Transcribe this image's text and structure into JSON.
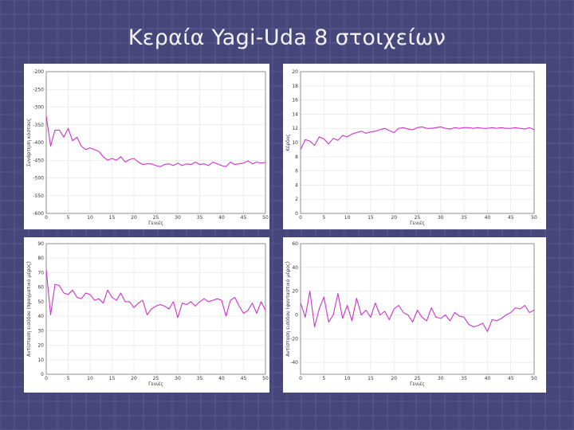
{
  "slide": {
    "title": "Κεραία Yagi-Uda 8 στοιχείων"
  },
  "colors": {
    "background": "#46467a",
    "grid_lines": "#5a5a92",
    "series": "#cc33cc",
    "panel": "#ffffff"
  },
  "chart_data": [
    {
      "type": "line",
      "xlabel": "Γενιές",
      "ylabel": "Συνάρτηση κόστους",
      "xlim": [
        0,
        50
      ],
      "ylim": [
        -600,
        -200
      ],
      "xticks": [
        0,
        5,
        10,
        15,
        20,
        25,
        30,
        35,
        40,
        45,
        50
      ],
      "yticks": [
        -200,
        -250,
        -300,
        -350,
        -400,
        -450,
        -500,
        -550,
        -600
      ],
      "grid": true,
      "x": [
        0,
        1,
        2,
        3,
        4,
        5,
        6,
        7,
        8,
        9,
        10,
        11,
        12,
        13,
        14,
        15,
        16,
        17,
        18,
        19,
        20,
        21,
        22,
        23,
        24,
        25,
        26,
        27,
        28,
        29,
        30,
        31,
        32,
        33,
        34,
        35,
        36,
        37,
        38,
        39,
        40,
        41,
        42,
        43,
        44,
        45,
        46,
        47,
        48,
        49,
        50
      ],
      "series": [
        {
          "values": [
            -325,
            -410,
            -365,
            -365,
            -385,
            -360,
            -395,
            -385,
            -410,
            -420,
            -415,
            -420,
            -425,
            -440,
            -450,
            -445,
            -450,
            -440,
            -455,
            -448,
            -445,
            -455,
            -462,
            -460,
            -460,
            -465,
            -468,
            -462,
            -460,
            -465,
            -458,
            -465,
            -460,
            -462,
            -455,
            -462,
            -460,
            -465,
            -455,
            -460,
            -465,
            -468,
            -455,
            -462,
            -460,
            -458,
            -452,
            -460,
            -455,
            -458,
            -456
          ]
        }
      ]
    },
    {
      "type": "line",
      "xlabel": "Γενιές",
      "ylabel": "Κέρδος",
      "xlim": [
        0,
        50
      ],
      "ylim": [
        0,
        20
      ],
      "xticks": [
        0,
        5,
        10,
        15,
        20,
        25,
        30,
        35,
        40,
        45,
        50
      ],
      "yticks": [
        0,
        2,
        4,
        6,
        8,
        10,
        12,
        14,
        16,
        18,
        20
      ],
      "grid": true,
      "x": [
        0,
        1,
        2,
        3,
        4,
        5,
        6,
        7,
        8,
        9,
        10,
        11,
        12,
        13,
        14,
        15,
        16,
        17,
        18,
        19,
        20,
        21,
        22,
        23,
        24,
        25,
        26,
        27,
        28,
        29,
        30,
        31,
        32,
        33,
        34,
        35,
        36,
        37,
        38,
        39,
        40,
        41,
        42,
        43,
        44,
        45,
        46,
        47,
        48,
        49,
        50
      ],
      "series": [
        {
          "values": [
            9.0,
            10.4,
            10.2,
            9.6,
            10.8,
            10.5,
            9.8,
            10.6,
            10.3,
            11.0,
            10.8,
            11.2,
            11.4,
            11.6,
            11.3,
            11.5,
            11.6,
            11.8,
            12.0,
            11.7,
            11.4,
            12.0,
            12.1,
            11.9,
            11.8,
            12.1,
            12.2,
            12.0,
            12.0,
            12.1,
            12.2,
            12.0,
            11.9,
            12.1,
            12.0,
            12.1,
            12.1,
            12.0,
            12.1,
            12.0,
            12.0,
            12.1,
            12.0,
            12.1,
            12.0,
            12.0,
            12.1,
            12.0,
            11.9,
            12.1,
            11.8
          ]
        }
      ]
    },
    {
      "type": "line",
      "xlabel": "Γενιές",
      "ylabel": "Αντίσταση εισόδου (πραγματικό μέρος)",
      "xlim": [
        0,
        50
      ],
      "ylim": [
        0,
        90
      ],
      "xticks": [
        0,
        5,
        10,
        15,
        20,
        25,
        30,
        35,
        40,
        45,
        50
      ],
      "yticks": [
        0,
        10,
        20,
        30,
        40,
        50,
        60,
        70,
        80,
        90
      ],
      "grid": true,
      "x": [
        0,
        1,
        2,
        3,
        4,
        5,
        6,
        7,
        8,
        9,
        10,
        11,
        12,
        13,
        14,
        15,
        16,
        17,
        18,
        19,
        20,
        21,
        22,
        23,
        24,
        25,
        26,
        27,
        28,
        29,
        30,
        31,
        32,
        33,
        34,
        35,
        36,
        37,
        38,
        39,
        40,
        41,
        42,
        43,
        44,
        45,
        46,
        47,
        48,
        49,
        50
      ],
      "series": [
        {
          "values": [
            72,
            41,
            62,
            61,
            56,
            55,
            58,
            53,
            52,
            56,
            55,
            51,
            52,
            49,
            58,
            53,
            51,
            56,
            50,
            50,
            46,
            49,
            51,
            41,
            45,
            47,
            48,
            47,
            45,
            50,
            39,
            49,
            48,
            50,
            47,
            50,
            52,
            50,
            51,
            52,
            51,
            40,
            51,
            53,
            47,
            42,
            44,
            49,
            42,
            50,
            44
          ]
        }
      ]
    },
    {
      "type": "line",
      "xlabel": "Γενιές",
      "ylabel": "Αντίσταση εισόδου (φανταστικό μέρος)",
      "xlim": [
        0,
        50
      ],
      "ylim": [
        -50,
        60
      ],
      "xticks": [
        0,
        5,
        10,
        15,
        20,
        25,
        30,
        35,
        40,
        45,
        50
      ],
      "yticks": [
        -40,
        -20,
        0,
        20,
        40,
        60
      ],
      "grid": true,
      "x": [
        0,
        1,
        2,
        3,
        4,
        5,
        6,
        7,
        8,
        9,
        10,
        11,
        12,
        13,
        14,
        15,
        16,
        17,
        18,
        19,
        20,
        21,
        22,
        23,
        24,
        25,
        26,
        27,
        28,
        29,
        30,
        31,
        32,
        33,
        34,
        35,
        36,
        37,
        38,
        39,
        40,
        41,
        42,
        43,
        44,
        45,
        46,
        47,
        48,
        49,
        50
      ],
      "series": [
        {
          "values": [
            10,
            -2,
            20,
            -10,
            5,
            15,
            -6,
            0,
            18,
            -3,
            8,
            -5,
            14,
            0,
            4,
            -2,
            10,
            0,
            3,
            -4,
            5,
            8,
            2,
            0,
            -6,
            4,
            -2,
            -5,
            6,
            -2,
            -3,
            0,
            -5,
            2,
            -1,
            -2,
            -8,
            -10,
            -9,
            -7,
            -14,
            -4,
            -5,
            -3,
            0,
            2,
            6,
            5,
            8,
            2,
            4
          ]
        }
      ]
    }
  ]
}
